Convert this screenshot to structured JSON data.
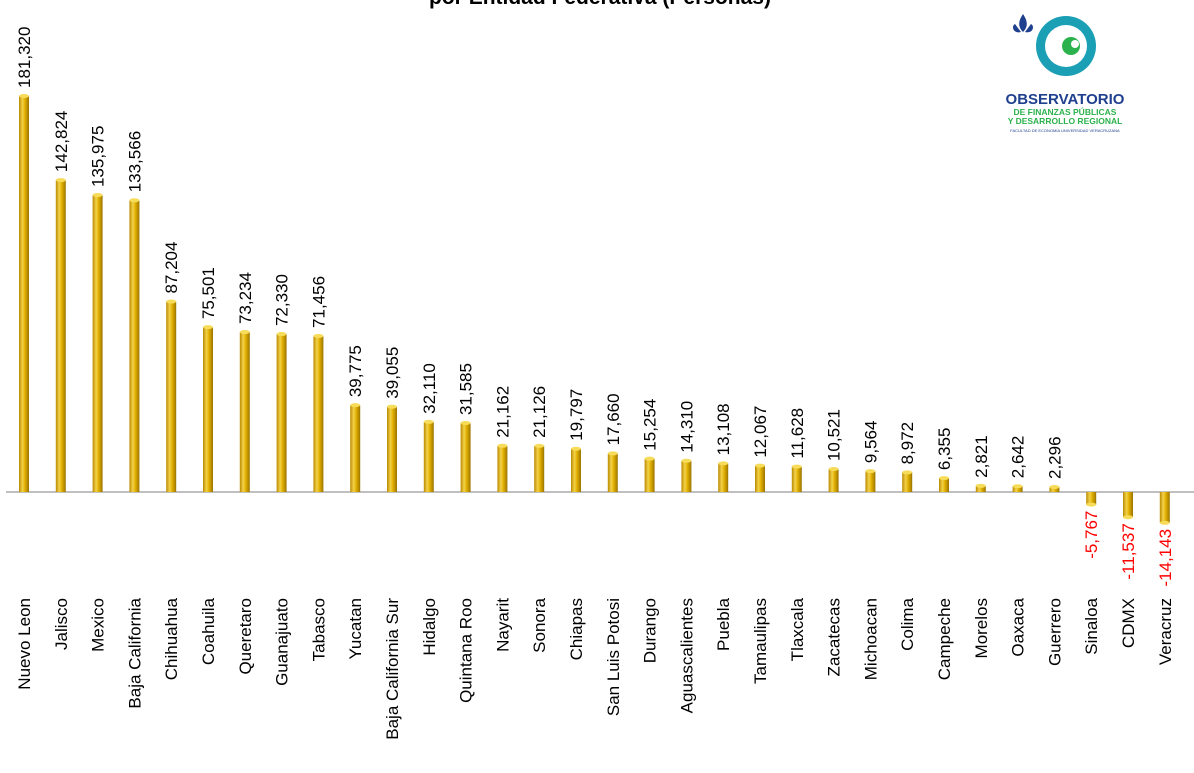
{
  "title": "por Entidad Federativa (Personas)",
  "logo": {
    "line1": "OBSERVATORIO",
    "line2": "DE FINANZAS PÚBLICAS",
    "line3": "Y DESARROLLO REGIONAL",
    "line4": "FACULTAD DE ECONOMÍA UNIVERSIDAD VERACRUZANA",
    "colors": {
      "blue": "#1f3f8f",
      "green": "#2bb24c",
      "teal": "#1a9fb5"
    }
  },
  "chart_data": {
    "type": "bar",
    "categories": [
      "Nuevo Leon",
      "Jalisco",
      "Mexico",
      "Baja California",
      "Chihuahua",
      "Coahuila",
      "Queretaro",
      "Guanajuato",
      "Tabasco",
      "Yucatan",
      "Baja California Sur",
      "Hidalgo",
      "Quintana Roo",
      "Nayarit",
      "Sonora",
      "Chiapas",
      "San Luis Potosi",
      "Durango",
      "Aguascalientes",
      "Puebla",
      "Tamaulipas",
      "Tlaxcala",
      "Zacatecas",
      "Michoacan",
      "Colima",
      "Campeche",
      "Morelos",
      "Oaxaca",
      "Guerrero",
      "Sinaloa",
      "CDMX",
      "Veracruz"
    ],
    "values": [
      181320,
      142824,
      135975,
      133566,
      87204,
      75501,
      73234,
      72330,
      71456,
      39775,
      39055,
      32110,
      31585,
      21162,
      21126,
      19797,
      17660,
      15254,
      14310,
      13108,
      12067,
      11628,
      10521,
      9564,
      8972,
      6355,
      2821,
      2642,
      2296,
      -5767,
      -11537,
      -14143
    ],
    "data_labels": [
      "181,320",
      "142,824",
      "135,975",
      "133,566",
      "87,204",
      "75,501",
      "73,234",
      "72,330",
      "71,456",
      "39,775",
      "39,055",
      "32,110",
      "31,585",
      "21,162",
      "21,126",
      "19,797",
      "17,660",
      "15,254",
      "14,310",
      "13,108",
      "12,067",
      "11,628",
      "10,521",
      "9,564",
      "8,972",
      "6,355",
      "2,821",
      "2,642",
      "2,296",
      "-5,767",
      "-11,537",
      "-14,143"
    ],
    "colors": {
      "bar": "#d9a800",
      "bar_light": "#f7dc5a",
      "bar_dark": "#9c7400",
      "negative_label": "#ff0000",
      "label": "#000000"
    },
    "grid": false,
    "legend": "none"
  }
}
